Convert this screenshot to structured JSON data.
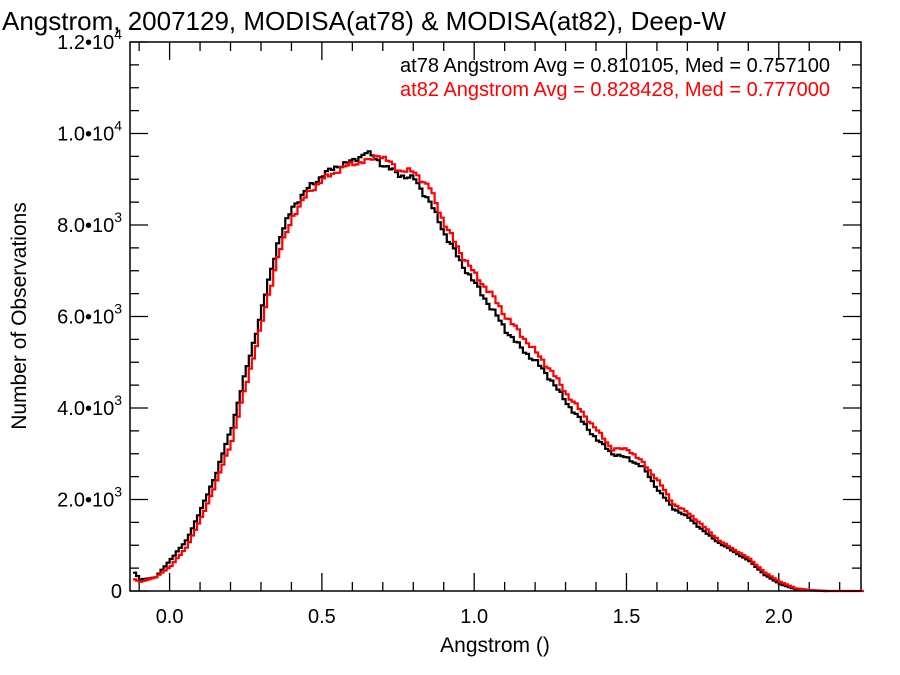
{
  "chart_data": {
    "type": "line",
    "title": "Angstrom, 2007129, MODISA(at78) & MODISA(at82), Deep-W",
    "xlabel": "Angstrom ()",
    "ylabel": "Number of Observations",
    "xlim": [
      -0.13,
      2.27
    ],
    "ylim": [
      0,
      12000
    ],
    "x_ticks": [
      {
        "value": 0.0,
        "label": "0.0"
      },
      {
        "value": 0.5,
        "label": "0.5"
      },
      {
        "value": 1.0,
        "label": "1.0"
      },
      {
        "value": 1.5,
        "label": "1.5"
      },
      {
        "value": 2.0,
        "label": "2.0"
      }
    ],
    "y_ticks": [
      {
        "value": 0,
        "mant": "0",
        "exp": ""
      },
      {
        "value": 2000,
        "mant": "2.0•10",
        "exp": "3"
      },
      {
        "value": 4000,
        "mant": "4.0•10",
        "exp": "3"
      },
      {
        "value": 6000,
        "mant": "6.0•10",
        "exp": "3"
      },
      {
        "value": 8000,
        "mant": "8.0•10",
        "exp": "3"
      },
      {
        "value": 10000,
        "mant": "1.0•10",
        "exp": "4"
      },
      {
        "value": 12000,
        "mant": "1.2•10",
        "exp": "4"
      }
    ],
    "legend_position": "top-right",
    "series": [
      {
        "name": "at78",
        "color": "#000000",
        "stat_text": "at78 Angstrom Avg = 0.810105, Med = 0.757100",
        "x": [
          -0.12,
          -0.1,
          -0.05,
          0.0,
          0.05,
          0.1,
          0.15,
          0.2,
          0.25,
          0.3,
          0.35,
          0.4,
          0.45,
          0.5,
          0.55,
          0.6,
          0.64,
          0.66,
          0.7,
          0.75,
          0.8,
          0.85,
          0.9,
          0.95,
          1.0,
          1.05,
          1.1,
          1.15,
          1.2,
          1.25,
          1.3,
          1.35,
          1.4,
          1.45,
          1.5,
          1.55,
          1.6,
          1.65,
          1.7,
          1.75,
          1.8,
          1.85,
          1.9,
          1.95,
          2.0,
          2.05,
          2.1,
          2.15
        ],
        "y": [
          400,
          250,
          300,
          700,
          1100,
          1800,
          2600,
          3600,
          4900,
          6200,
          7600,
          8400,
          8800,
          9100,
          9300,
          9400,
          9600,
          9500,
          9300,
          9100,
          9000,
          8500,
          7800,
          7200,
          6700,
          6200,
          5700,
          5300,
          5000,
          4600,
          4100,
          3700,
          3300,
          3000,
          2900,
          2700,
          2200,
          1800,
          1600,
          1300,
          1050,
          850,
          650,
          350,
          150,
          40,
          15,
          0
        ]
      },
      {
        "name": "at82",
        "color": "#ff0000",
        "stat_text": "at82 Angstrom Avg = 0.828428, Med = 0.777000",
        "x": [
          -0.12,
          -0.1,
          -0.05,
          0.0,
          0.05,
          0.1,
          0.15,
          0.2,
          0.25,
          0.3,
          0.35,
          0.4,
          0.45,
          0.5,
          0.55,
          0.6,
          0.65,
          0.68,
          0.7,
          0.75,
          0.8,
          0.85,
          0.9,
          0.95,
          1.0,
          1.05,
          1.1,
          1.15,
          1.2,
          1.25,
          1.3,
          1.35,
          1.4,
          1.45,
          1.5,
          1.55,
          1.6,
          1.65,
          1.7,
          1.75,
          1.8,
          1.85,
          1.9,
          1.95,
          2.0,
          2.05,
          2.1,
          2.15,
          2.2,
          2.27
        ],
        "y": [
          250,
          200,
          300,
          550,
          950,
          1600,
          2400,
          3300,
          4600,
          5900,
          7300,
          8200,
          8700,
          9000,
          9200,
          9350,
          9400,
          9550,
          9450,
          9200,
          9150,
          8800,
          8000,
          7400,
          6900,
          6500,
          6000,
          5600,
          5200,
          4800,
          4300,
          3900,
          3500,
          3100,
          3100,
          2800,
          2400,
          1900,
          1700,
          1400,
          1100,
          900,
          700,
          400,
          200,
          60,
          20,
          0,
          0,
          0
        ]
      }
    ]
  }
}
